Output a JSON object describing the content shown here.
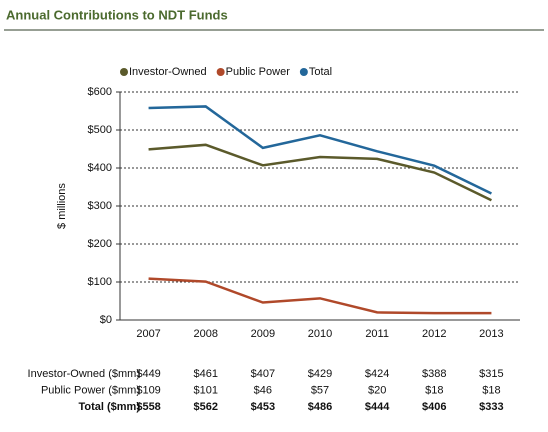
{
  "chart_data": {
    "type": "line",
    "title": "Annual Contributions to NDT Funds",
    "y_label": "$ millions",
    "categories": [
      "2007",
      "2008",
      "2009",
      "2010",
      "2011",
      "2012",
      "2013"
    ],
    "series": [
      {
        "name": "Investor-Owned",
        "table_label": "Investor-Owned ($mm)",
        "color": "#5b5a2b",
        "values": [
          449,
          461,
          407,
          429,
          424,
          388,
          315
        ],
        "value_labels": [
          "$449",
          "$461",
          "$407",
          "$429",
          "$424",
          "$388",
          "$315"
        ]
      },
      {
        "name": "Public Power",
        "table_label": "Public Power ($mm)",
        "color": "#b0492a",
        "values": [
          109,
          101,
          46,
          57,
          20,
          18,
          18
        ],
        "value_labels": [
          "$109",
          "$101",
          "$46",
          "$57",
          "$20",
          "$18",
          "$18"
        ]
      },
      {
        "name": "Total",
        "table_label": "Total ($mm)",
        "color": "#23679a",
        "bold": true,
        "values": [
          558,
          562,
          453,
          486,
          444,
          406,
          333
        ],
        "value_labels": [
          "$558",
          "$562",
          "$453",
          "$486",
          "$444",
          "$406",
          "$333"
        ]
      }
    ],
    "ylim": [
      0,
      600
    ],
    "yticks": [
      {
        "value": 0,
        "label": "$0"
      },
      {
        "value": 100,
        "label": "$100"
      },
      {
        "value": 200,
        "label": "$200"
      },
      {
        "value": 300,
        "label": "$300"
      },
      {
        "value": 400,
        "label": "$400"
      },
      {
        "value": 500,
        "label": "$500"
      },
      {
        "value": 600,
        "label": "$600"
      }
    ],
    "grid": true
  }
}
